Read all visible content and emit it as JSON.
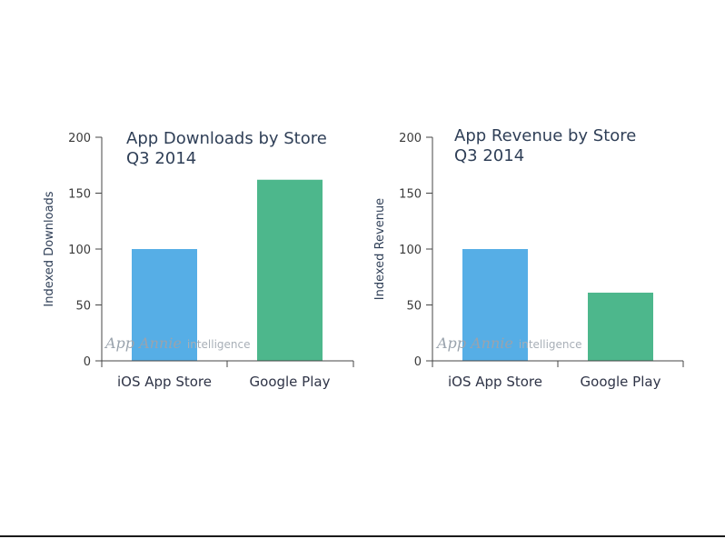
{
  "watermark": {
    "brand": "App Annie",
    "sub": "intelligence"
  },
  "chart_data": [
    {
      "type": "bar",
      "title": [
        "App Downloads by Store",
        "Q3 2014"
      ],
      "ylabel": "Indexed Downloads",
      "categories": [
        "iOS App Store",
        "Google Play"
      ],
      "values": [
        100,
        162
      ],
      "colors": [
        "#56aee6",
        "#4db78c"
      ],
      "ylim": [
        0,
        200
      ],
      "yticks": [
        0,
        50,
        100,
        150,
        200
      ],
      "grid": false
    },
    {
      "type": "bar",
      "title": [
        "App Revenue by Store",
        "Q3 2014"
      ],
      "ylabel": "Indexed Revenue",
      "categories": [
        "iOS App Store",
        "Google Play"
      ],
      "values": [
        100,
        61
      ],
      "colors": [
        "#56aee6",
        "#4db78c"
      ],
      "ylim": [
        0,
        200
      ],
      "yticks": [
        0,
        50,
        100,
        150,
        200
      ],
      "grid": false
    }
  ]
}
